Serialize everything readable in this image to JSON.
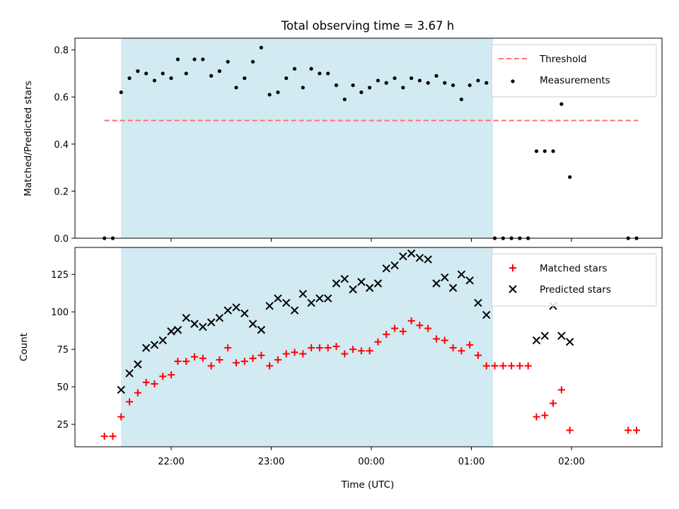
{
  "chart_data": [
    {
      "type": "scatter",
      "title": "Total observing time = 3.67 h",
      "xlabel": "",
      "ylabel": "Matched/Predicted stars",
      "ylim": [
        0,
        0.85
      ],
      "yticks": [
        "0.0",
        "0.2",
        "0.4",
        "0.6",
        "0.8"
      ],
      "legend_position": "top-right",
      "observing_window": {
        "start": "21:30",
        "end": "01:13",
        "color": "#add8e6"
      },
      "threshold": {
        "name": "Threshold",
        "value": 0.5,
        "x_start": "21:20",
        "x_end": "02:40",
        "color": "#ff7070"
      },
      "series": [
        {
          "name": "Measurements",
          "color": "#000000",
          "marker": "dot",
          "points": [
            [
              "21:20",
              0.0
            ],
            [
              "21:25",
              0.0
            ],
            [
              "21:30",
              0.62
            ],
            [
              "21:35",
              0.68
            ],
            [
              "21:40",
              0.71
            ],
            [
              "21:45",
              0.7
            ],
            [
              "21:50",
              0.67
            ],
            [
              "21:55",
              0.7
            ],
            [
              "22:00",
              0.68
            ],
            [
              "22:04",
              0.76
            ],
            [
              "22:09",
              0.7
            ],
            [
              "22:14",
              0.76
            ],
            [
              "22:19",
              0.76
            ],
            [
              "22:24",
              0.69
            ],
            [
              "22:29",
              0.71
            ],
            [
              "22:34",
              0.75
            ],
            [
              "22:39",
              0.64
            ],
            [
              "22:44",
              0.68
            ],
            [
              "22:49",
              0.75
            ],
            [
              "22:54",
              0.81
            ],
            [
              "22:59",
              0.61
            ],
            [
              "23:04",
              0.62
            ],
            [
              "23:09",
              0.68
            ],
            [
              "23:14",
              0.72
            ],
            [
              "23:19",
              0.64
            ],
            [
              "23:24",
              0.72
            ],
            [
              "23:29",
              0.7
            ],
            [
              "23:34",
              0.7
            ],
            [
              "23:39",
              0.65
            ],
            [
              "23:44",
              0.59
            ],
            [
              "23:49",
              0.65
            ],
            [
              "23:54",
              0.62
            ],
            [
              "23:59",
              0.64
            ],
            [
              "00:04",
              0.67
            ],
            [
              "00:09",
              0.66
            ],
            [
              "00:14",
              0.68
            ],
            [
              "00:19",
              0.64
            ],
            [
              "00:24",
              0.68
            ],
            [
              "00:29",
              0.67
            ],
            [
              "00:34",
              0.66
            ],
            [
              "00:39",
              0.69
            ],
            [
              "00:44",
              0.66
            ],
            [
              "00:49",
              0.65
            ],
            [
              "00:54",
              0.59
            ],
            [
              "00:59",
              0.65
            ],
            [
              "01:04",
              0.67
            ],
            [
              "01:09",
              0.66
            ],
            [
              "01:14",
              0.0
            ],
            [
              "01:19",
              0.0
            ],
            [
              "01:24",
              0.0
            ],
            [
              "01:29",
              0.0
            ],
            [
              "01:34",
              0.0
            ],
            [
              "01:39",
              0.37
            ],
            [
              "01:44",
              0.37
            ],
            [
              "01:49",
              0.37
            ],
            [
              "01:54",
              0.57
            ],
            [
              "01:59",
              0.26
            ],
            [
              "02:34",
              0.0
            ],
            [
              "02:39",
              0.0
            ]
          ]
        }
      ]
    },
    {
      "type": "scatter",
      "title": "",
      "xlabel": "Time (UTC)",
      "ylabel": "Count",
      "ylim": [
        10,
        143
      ],
      "yticks": [
        "25",
        "50",
        "75",
        "100",
        "125"
      ],
      "xticks": [
        "22:00",
        "23:00",
        "00:00",
        "01:00",
        "02:00"
      ],
      "legend_position": "top-right",
      "observing_window": {
        "start": "21:30",
        "end": "01:13",
        "color": "#add8e6"
      },
      "series": [
        {
          "name": "Matched stars",
          "color": "#ff0000",
          "marker": "plus",
          "points": [
            [
              "21:20",
              17
            ],
            [
              "21:25",
              17
            ],
            [
              "21:30",
              30
            ],
            [
              "21:35",
              40
            ],
            [
              "21:40",
              46
            ],
            [
              "21:45",
              53
            ],
            [
              "21:50",
              52
            ],
            [
              "21:55",
              57
            ],
            [
              "22:00",
              58
            ],
            [
              "22:04",
              67
            ],
            [
              "22:09",
              67
            ],
            [
              "22:14",
              70
            ],
            [
              "22:19",
              69
            ],
            [
              "22:24",
              64
            ],
            [
              "22:29",
              68
            ],
            [
              "22:34",
              76
            ],
            [
              "22:39",
              66
            ],
            [
              "22:44",
              67
            ],
            [
              "22:49",
              69
            ],
            [
              "22:54",
              71
            ],
            [
              "22:59",
              64
            ],
            [
              "23:04",
              68
            ],
            [
              "23:09",
              72
            ],
            [
              "23:14",
              73
            ],
            [
              "23:19",
              72
            ],
            [
              "23:24",
              76
            ],
            [
              "23:29",
              76
            ],
            [
              "23:34",
              76
            ],
            [
              "23:39",
              77
            ],
            [
              "23:44",
              72
            ],
            [
              "23:49",
              75
            ],
            [
              "23:54",
              74
            ],
            [
              "23:59",
              74
            ],
            [
              "00:04",
              80
            ],
            [
              "00:09",
              85
            ],
            [
              "00:14",
              89
            ],
            [
              "00:19",
              87
            ],
            [
              "00:24",
              94
            ],
            [
              "00:29",
              91
            ],
            [
              "00:34",
              89
            ],
            [
              "00:39",
              82
            ],
            [
              "00:44",
              81
            ],
            [
              "00:49",
              76
            ],
            [
              "00:54",
              74
            ],
            [
              "00:59",
              78
            ],
            [
              "01:04",
              71
            ],
            [
              "01:09",
              64
            ],
            [
              "01:14",
              64
            ],
            [
              "01:19",
              64
            ],
            [
              "01:24",
              64
            ],
            [
              "01:29",
              64
            ],
            [
              "01:34",
              64
            ],
            [
              "01:39",
              30
            ],
            [
              "01:44",
              31
            ],
            [
              "01:49",
              39
            ],
            [
              "01:54",
              48
            ],
            [
              "01:59",
              21
            ],
            [
              "02:34",
              21
            ],
            [
              "02:39",
              21
            ]
          ]
        },
        {
          "name": "Predicted stars",
          "color": "#000000",
          "marker": "x",
          "points": [
            [
              "21:30",
              48
            ],
            [
              "21:35",
              59
            ],
            [
              "21:40",
              65
            ],
            [
              "21:45",
              76
            ],
            [
              "21:50",
              78
            ],
            [
              "21:55",
              81
            ],
            [
              "22:00",
              87
            ],
            [
              "22:04",
              88
            ],
            [
              "22:09",
              96
            ],
            [
              "22:14",
              92
            ],
            [
              "22:19",
              90
            ],
            [
              "22:24",
              93
            ],
            [
              "22:29",
              96
            ],
            [
              "22:34",
              101
            ],
            [
              "22:39",
              103
            ],
            [
              "22:44",
              99
            ],
            [
              "22:49",
              92
            ],
            [
              "22:54",
              88
            ],
            [
              "22:59",
              104
            ],
            [
              "23:04",
              109
            ],
            [
              "23:09",
              106
            ],
            [
              "23:14",
              101
            ],
            [
              "23:19",
              112
            ],
            [
              "23:24",
              106
            ],
            [
              "23:29",
              109
            ],
            [
              "23:34",
              109
            ],
            [
              "23:39",
              119
            ],
            [
              "23:44",
              122
            ],
            [
              "23:49",
              115
            ],
            [
              "23:54",
              120
            ],
            [
              "23:59",
              116
            ],
            [
              "00:04",
              119
            ],
            [
              "00:09",
              129
            ],
            [
              "00:14",
              131
            ],
            [
              "00:19",
              137
            ],
            [
              "00:24",
              139
            ],
            [
              "00:29",
              136
            ],
            [
              "00:34",
              135
            ],
            [
              "00:39",
              119
            ],
            [
              "00:44",
              123
            ],
            [
              "00:49",
              116
            ],
            [
              "00:54",
              125
            ],
            [
              "00:59",
              121
            ],
            [
              "01:04",
              106
            ],
            [
              "01:09",
              98
            ],
            [
              "01:39",
              81
            ],
            [
              "01:44",
              84
            ],
            [
              "01:49",
              104
            ],
            [
              "01:54",
              84
            ],
            [
              "01:59",
              80
            ]
          ]
        }
      ]
    }
  ]
}
